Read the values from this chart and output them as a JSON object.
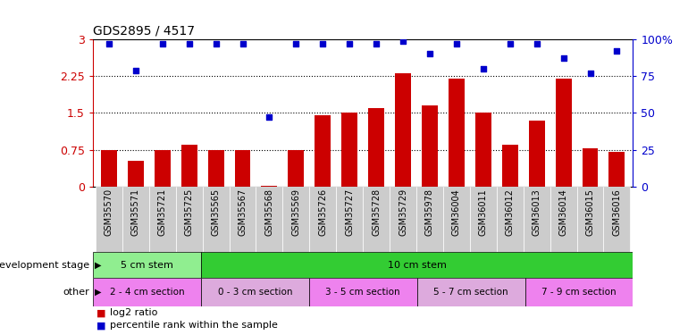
{
  "title": "GDS2895 / 4517",
  "samples": [
    "GSM35570",
    "GSM35571",
    "GSM35721",
    "GSM35725",
    "GSM35565",
    "GSM35567",
    "GSM35568",
    "GSM35569",
    "GSM35726",
    "GSM35727",
    "GSM35728",
    "GSM35729",
    "GSM35978",
    "GSM36004",
    "GSM36011",
    "GSM36012",
    "GSM36013",
    "GSM36014",
    "GSM36015",
    "GSM36016"
  ],
  "log2_ratio": [
    0.75,
    0.52,
    0.75,
    0.85,
    0.75,
    0.75,
    0.02,
    0.75,
    1.45,
    1.5,
    1.6,
    2.3,
    1.65,
    2.2,
    1.5,
    0.85,
    1.35,
    2.2,
    0.78,
    0.7
  ],
  "percentile": [
    97,
    79,
    97,
    97,
    97,
    97,
    47,
    97,
    97,
    97,
    97,
    99,
    90,
    97,
    80,
    97,
    97,
    87,
    77,
    92
  ],
  "bar_color": "#cc0000",
  "dot_color": "#0000cc",
  "ylim_left": [
    0,
    3.0
  ],
  "ylim_right": [
    0,
    100
  ],
  "yticks_left": [
    0,
    0.75,
    1.5,
    2.25,
    3.0
  ],
  "yticks_right": [
    0,
    25,
    50,
    75,
    100
  ],
  "ytick_labels_left": [
    "0",
    "0.75",
    "1.5",
    "2.25",
    "3"
  ],
  "ytick_labels_right": [
    "0",
    "25",
    "50",
    "75",
    "100%"
  ],
  "dev_stage_bands": [
    {
      "label": "5 cm stem",
      "start": 0,
      "end": 4,
      "color": "#90ee90"
    },
    {
      "label": "10 cm stem",
      "start": 4,
      "end": 20,
      "color": "#33cc33"
    }
  ],
  "other_bands": [
    {
      "label": "2 - 4 cm section",
      "start": 0,
      "end": 4,
      "color": "#ee82ee"
    },
    {
      "label": "0 - 3 cm section",
      "start": 4,
      "end": 8,
      "color": "#ddaadd"
    },
    {
      "label": "3 - 5 cm section",
      "start": 8,
      "end": 12,
      "color": "#ee82ee"
    },
    {
      "label": "5 - 7 cm section",
      "start": 12,
      "end": 16,
      "color": "#ddaadd"
    },
    {
      "label": "7 - 9 cm section",
      "start": 16,
      "end": 20,
      "color": "#ee82ee"
    }
  ],
  "background_color": "#ffffff",
  "left_tick_color": "#cc0000",
  "right_tick_color": "#0000cc",
  "xtick_bg_color": "#cccccc"
}
